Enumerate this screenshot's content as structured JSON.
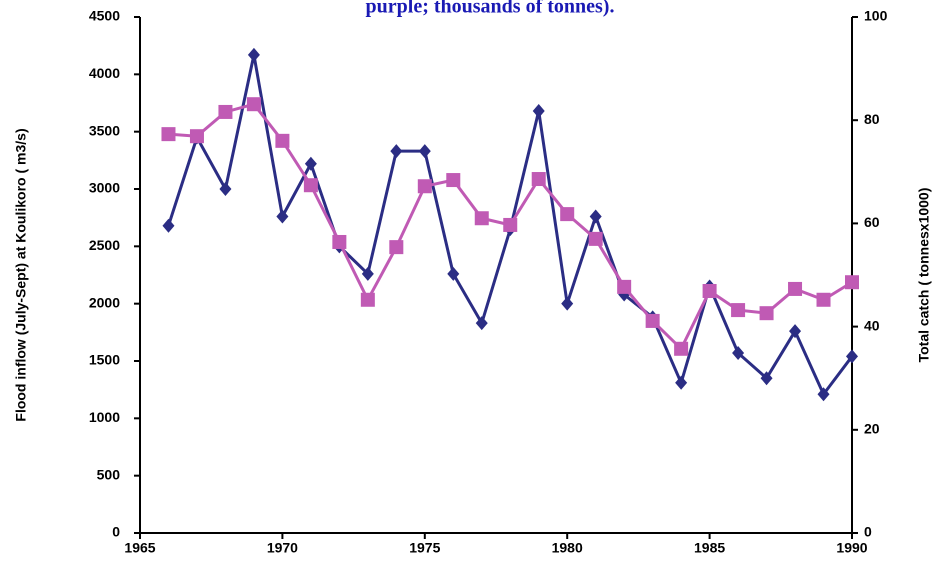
{
  "chart_data": {
    "type": "line",
    "title": "purple; thousands of tonnes).",
    "y_label": "Flood inflow (July-Sept) at Koulikoro ( m3/s)",
    "y2_label": "Total catch ( tonnesx1000)",
    "x": [
      1966,
      1967,
      1968,
      1969,
      1970,
      1971,
      1972,
      1973,
      1974,
      1975,
      1976,
      1977,
      1978,
      1979,
      1980,
      1981,
      1982,
      1983,
      1984,
      1985,
      1986,
      1987,
      1988,
      1989,
      1990
    ],
    "xlim": [
      1965,
      1990
    ],
    "xticks": [
      1965,
      1970,
      1975,
      1980,
      1985,
      1990
    ],
    "ylim": [
      0,
      4500
    ],
    "yticks": [
      0,
      500,
      1000,
      1500,
      2000,
      2500,
      3000,
      3500,
      4000,
      4500
    ],
    "y2lim": [
      0,
      100
    ],
    "y2ticks": [
      0,
      20,
      40,
      60,
      80,
      100
    ],
    "grid": false,
    "series": [
      {
        "color": "#2b2d84",
        "marker": "diamond",
        "axis": "y",
        "values": [
          2680,
          3450,
          3000,
          4170,
          2760,
          3220,
          2500,
          2260,
          3330,
          3330,
          2260,
          1830,
          2650,
          3680,
          2000,
          2760,
          2080,
          1880,
          1310,
          2150,
          1570,
          1350,
          1760,
          1210,
          1540
        ]
      },
      {
        "color": "#c05ab4",
        "marker": "square",
        "axis": "y2",
        "values": [
          77.3,
          76.9,
          81.6,
          83.1,
          76.0,
          67.4,
          56.4,
          45.2,
          55.4,
          67.2,
          68.4,
          61.0,
          59.7,
          68.6,
          61.8,
          57.0,
          47.7,
          41.1,
          35.7,
          46.9,
          43.2,
          42.6,
          47.3,
          45.2,
          48.6
        ]
      }
    ]
  }
}
